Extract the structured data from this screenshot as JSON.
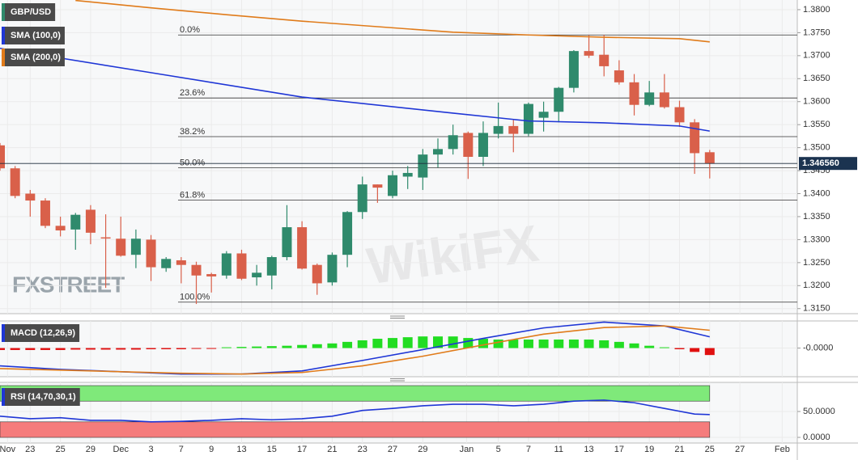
{
  "chart_data": [
    {
      "type": "candlestick",
      "title": "GBP/USD",
      "title_color": "#2f8a6c",
      "x": [
        -2,
        -1,
        0,
        1,
        2,
        3,
        4,
        5,
        6,
        7,
        8,
        9,
        10,
        11,
        12,
        13,
        14,
        15,
        16,
        17,
        18,
        19,
        20,
        21,
        22,
        23,
        24,
        25,
        26,
        27,
        28,
        29,
        30,
        31,
        32,
        33,
        34,
        35,
        36,
        37,
        38,
        39,
        40,
        41,
        42,
        43,
        44,
        45
      ],
      "open": [
        1.3505,
        1.3455,
        1.34,
        1.3385,
        1.333,
        1.3322,
        1.3365,
        1.3305,
        1.3302,
        1.3267,
        1.33,
        1.3238,
        1.3255,
        1.3245,
        1.3225,
        1.3222,
        1.327,
        1.3218,
        1.3222,
        1.3262,
        1.3327,
        1.3245,
        1.3207,
        1.3267,
        1.336,
        1.342,
        1.3395,
        1.3437,
        1.3435,
        1.3485,
        1.3497,
        1.3532,
        1.348,
        1.353,
        1.3547,
        1.353,
        1.3565,
        1.3578,
        1.363,
        1.371,
        1.3702,
        1.3668,
        1.3642,
        1.3593,
        1.362,
        1.3588,
        1.3555,
        1.349
      ],
      "high": [
        1.351,
        1.346,
        1.3408,
        1.339,
        1.335,
        1.3358,
        1.3375,
        1.3355,
        1.335,
        1.3322,
        1.331,
        1.3262,
        1.3262,
        1.3252,
        1.3228,
        1.3275,
        1.3278,
        1.3245,
        1.3265,
        1.3375,
        1.334,
        1.3248,
        1.3272,
        1.3362,
        1.3437,
        1.342,
        1.345,
        1.346,
        1.3497,
        1.352,
        1.355,
        1.3535,
        1.3557,
        1.3598,
        1.356,
        1.3598,
        1.36,
        1.3632,
        1.3712,
        1.3745,
        1.3745,
        1.369,
        1.366,
        1.3645,
        1.366,
        1.3602,
        1.3562,
        1.3495
      ],
      "low": [
        1.345,
        1.339,
        1.335,
        1.3325,
        1.3307,
        1.3278,
        1.329,
        1.3195,
        1.3263,
        1.3238,
        1.321,
        1.323,
        1.3205,
        1.316,
        1.3185,
        1.3215,
        1.3212,
        1.32,
        1.3192,
        1.3255,
        1.3235,
        1.318,
        1.32,
        1.324,
        1.3345,
        1.338,
        1.339,
        1.341,
        1.3408,
        1.3457,
        1.3485,
        1.3432,
        1.346,
        1.352,
        1.349,
        1.3525,
        1.3535,
        1.3555,
        1.362,
        1.3695,
        1.3655,
        1.3637,
        1.357,
        1.359,
        1.3585,
        1.3545,
        1.3443,
        1.3433
      ],
      "close": [
        1.3455,
        1.3395,
        1.3385,
        1.333,
        1.332,
        1.3354,
        1.3315,
        1.3303,
        1.3265,
        1.3302,
        1.324,
        1.3258,
        1.3245,
        1.3222,
        1.322,
        1.327,
        1.3215,
        1.3228,
        1.3262,
        1.3327,
        1.3237,
        1.3205,
        1.3267,
        1.336,
        1.342,
        1.3413,
        1.344,
        1.3445,
        1.3485,
        1.3497,
        1.3527,
        1.348,
        1.3532,
        1.3547,
        1.353,
        1.3595,
        1.3578,
        1.363,
        1.371,
        1.37,
        1.3677,
        1.3642,
        1.3593,
        1.362,
        1.3588,
        1.3555,
        1.3488,
        1.3466
      ],
      "up_color": "#2f8a6c",
      "down_color": "#d9604a",
      "series": [
        {
          "name": "SMA (100,0)",
          "color": "#1f36d6",
          "x": [
            -2,
            8,
            18,
            28,
            33,
            38,
            43,
            45
          ],
          "values": [
            1.3716,
            1.3663,
            1.361,
            1.3575,
            1.3558,
            1.3554,
            1.3547,
            1.3536
          ]
        },
        {
          "name": "SMA (200,0)",
          "color": "#e07b1a",
          "x": [
            3,
            8,
            13,
            18,
            23,
            28,
            33,
            38,
            43,
            45
          ],
          "values": [
            1.382,
            1.3804,
            1.3789,
            1.3775,
            1.3763,
            1.3751,
            1.3745,
            1.374,
            1.3737,
            1.373
          ]
        }
      ],
      "fib_levels": [
        {
          "label": "0.0%",
          "value": 1.3745
        },
        {
          "label": "23.6%",
          "value": 1.3608
        },
        {
          "label": "38.2%",
          "value": 1.3524
        },
        {
          "label": "50.0%",
          "value": 1.3456
        },
        {
          "label": "61.8%",
          "value": 1.3386
        },
        {
          "label": "100.0%",
          "value": 1.3164
        }
      ],
      "last_price": {
        "value": 1.34656,
        "label": "1.346560"
      },
      "ylim": [
        1.3139,
        1.3821
      ],
      "yticks": [
        {
          "value": 1.315,
          "label": "1.3150"
        },
        {
          "value": 1.32,
          "label": "1.3200"
        },
        {
          "value": 1.325,
          "label": "1.3250"
        },
        {
          "value": 1.33,
          "label": "1.3300"
        },
        {
          "value": 1.335,
          "label": "1.3350"
        },
        {
          "value": 1.34,
          "label": "1.3400"
        },
        {
          "value": 1.345,
          "label": "1.3450"
        },
        {
          "value": 1.35,
          "label": "1.3500"
        },
        {
          "value": 1.355,
          "label": "1.3550"
        },
        {
          "value": 1.36,
          "label": "1.3600"
        },
        {
          "value": 1.365,
          "label": "1.3650"
        },
        {
          "value": 1.37,
          "label": "1.3700"
        },
        {
          "value": 1.375,
          "label": "1.3750"
        },
        {
          "value": 1.38,
          "label": "1.3800"
        }
      ],
      "xlim": [
        -2,
        50.8
      ],
      "xticks": [
        {
          "value": -1.5,
          "label": "Nov"
        },
        {
          "value": 0,
          "label": "23"
        },
        {
          "value": 2,
          "label": "25"
        },
        {
          "value": 4,
          "label": "29"
        },
        {
          "value": 6,
          "label": "Dec"
        },
        {
          "value": 8,
          "label": "3"
        },
        {
          "value": 10,
          "label": "7"
        },
        {
          "value": 12,
          "label": "9"
        },
        {
          "value": 14,
          "label": "13"
        },
        {
          "value": 16,
          "label": "15"
        },
        {
          "value": 18,
          "label": "17"
        },
        {
          "value": 20,
          "label": "21"
        },
        {
          "value": 22,
          "label": "23"
        },
        {
          "value": 24,
          "label": "27"
        },
        {
          "value": 26,
          "label": "29"
        },
        {
          "value": 28.9,
          "label": "Jan"
        },
        {
          "value": 31,
          "label": "5"
        },
        {
          "value": 33,
          "label": "7"
        },
        {
          "value": 35,
          "label": "11"
        },
        {
          "value": 37,
          "label": "13"
        },
        {
          "value": 39,
          "label": "17"
        },
        {
          "value": 41,
          "label": "19"
        },
        {
          "value": 43,
          "label": "21"
        },
        {
          "value": 45,
          "label": "25"
        },
        {
          "value": 47,
          "label": "27"
        },
        {
          "value": 49.8,
          "label": "Feb"
        }
      ],
      "grid": true,
      "logo": "FXSTREET",
      "watermark": "WikiFX"
    },
    {
      "type": "macd",
      "title": "MACD (12,26,9)",
      "title_color": "#1f36d6",
      "x": [
        -2,
        -1,
        0,
        1,
        2,
        3,
        4,
        5,
        6,
        7,
        8,
        9,
        10,
        11,
        12,
        13,
        14,
        15,
        16,
        17,
        18,
        19,
        20,
        21,
        22,
        23,
        24,
        25,
        26,
        27,
        28,
        29,
        30,
        31,
        32,
        33,
        34,
        35,
        36,
        37,
        38,
        39,
        40,
        41,
        42,
        43,
        44,
        45
      ],
      "values": [
        -0.0005,
        -0.0005,
        -0.0005,
        -0.0005,
        -0.0005,
        -0.0004,
        -0.0004,
        -0.0004,
        -0.0004,
        -0.0004,
        -0.0003,
        -0.0003,
        -0.0003,
        -0.0002,
        -0.0002,
        0.0002,
        0.0003,
        0.0004,
        0.0005,
        0.0006,
        0.0008,
        0.001,
        0.0012,
        0.0016,
        0.002,
        0.0024,
        0.0026,
        0.0028,
        0.003,
        0.003,
        0.003,
        0.0026,
        0.0024,
        0.0022,
        0.0022,
        0.0022,
        0.0022,
        0.0022,
        0.0022,
        0.0022,
        0.002,
        0.0016,
        0.0012,
        0.0006,
        0.0002,
        -0.0003,
        -0.001,
        -0.0018
      ],
      "up_color": "#22dd22",
      "down_color": "#e01010",
      "series": [
        {
          "color": "#1f36d6",
          "x": [
            -2,
            2,
            6,
            10,
            14,
            18,
            22,
            26,
            30,
            34,
            38,
            42,
            45
          ],
          "values": [
            -0.0046,
            -0.0055,
            -0.0061,
            -0.0067,
            -0.0067,
            -0.0059,
            -0.0032,
            -0.0004,
            0.0025,
            0.0052,
            0.0067,
            0.0057,
            0.0029
          ]
        },
        {
          "color": "#e07b1a",
          "x": [
            -2,
            2,
            6,
            10,
            14,
            18,
            22,
            26,
            30,
            34,
            38,
            42,
            45
          ],
          "values": [
            -0.0053,
            -0.0057,
            -0.0061,
            -0.0065,
            -0.0067,
            -0.0063,
            -0.0046,
            -0.0021,
            0.0008,
            0.0036,
            0.0053,
            0.0057,
            0.0046
          ]
        }
      ],
      "ylim": [
        -0.0074,
        0.007
      ],
      "yticks": [
        {
          "value": 0,
          "label": "-0.0000"
        }
      ]
    },
    {
      "type": "rsi",
      "title": "RSI (14,70,30,1)",
      "title_color": "#1f36d6",
      "x": [
        -2,
        0,
        2,
        4,
        6,
        8,
        10,
        12,
        14,
        16,
        18,
        20,
        22,
        24,
        26,
        28,
        30,
        32,
        34,
        36,
        38,
        40,
        42,
        44,
        45
      ],
      "values": [
        41,
        36,
        38,
        33,
        33,
        30,
        31,
        33,
        36,
        34,
        36,
        41,
        52,
        56,
        61,
        64,
        64,
        61,
        64,
        70,
        72,
        67,
        56,
        45,
        44
      ],
      "color": "#1f36d6",
      "bands": [
        {
          "range": [
            70,
            100
          ],
          "color": "#7fe97a"
        },
        {
          "range": [
            0,
            30
          ],
          "color": "#f57c7c"
        }
      ],
      "ylim": [
        -10.9,
        106.25
      ],
      "yticks": [
        {
          "value": 0,
          "label": "0.0000"
        },
        {
          "value": 50,
          "label": "50.0000"
        }
      ]
    }
  ]
}
